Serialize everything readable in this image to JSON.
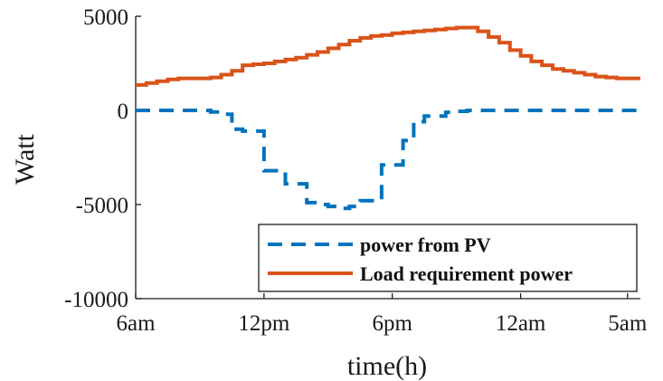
{
  "chart_data": {
    "type": "line",
    "title": "",
    "xlabel": "time(h)",
    "ylabel": "Watt",
    "ylim": [
      -10000,
      5000
    ],
    "xlim": [
      0,
      23.6
    ],
    "x_ticks": [
      {
        "value": 0,
        "label": "6am"
      },
      {
        "value": 6,
        "label": "12pm"
      },
      {
        "value": 12,
        "label": "6pm"
      },
      {
        "value": 18,
        "label": "12am"
      },
      {
        "value": 23,
        "label": "5am"
      }
    ],
    "y_ticks": [
      {
        "value": 5000,
        "label": "5000"
      },
      {
        "value": 0,
        "label": "0"
      },
      {
        "value": -5000,
        "label": "-5000"
      },
      {
        "value": -10000,
        "label": "-10000"
      }
    ],
    "grid": false,
    "legend_position": "bottom-right",
    "step": true,
    "series": [
      {
        "name": "power from PV",
        "color": "#0072BD",
        "dash": "dashed",
        "x": [
          -0.5,
          0,
          0.5,
          1,
          1.5,
          2,
          2.5,
          3,
          3.5,
          4,
          4.5,
          5,
          5.5,
          6,
          6.5,
          7,
          7.5,
          8,
          8.5,
          9,
          9.5,
          10,
          10.5,
          11,
          11.5,
          12,
          12.5,
          13,
          13.5,
          14,
          14.5,
          15,
          15.5,
          16,
          16.5,
          17,
          17.5,
          18,
          18.5,
          19,
          19.5,
          20,
          20.5,
          21,
          21.5,
          22,
          22.5,
          23,
          23.5
        ],
        "values": [
          0,
          0,
          0,
          0,
          0,
          0,
          0,
          0,
          -80,
          -200,
          -1000,
          -1100,
          -1100,
          -3200,
          -3200,
          -3900,
          -3900,
          -4900,
          -5000,
          -5100,
          -5200,
          -5100,
          -4800,
          -4800,
          -2900,
          -2900,
          -1600,
          -600,
          -300,
          -300,
          -100,
          -50,
          0,
          0,
          0,
          0,
          0,
          0,
          0,
          0,
          0,
          0,
          0,
          0,
          0,
          0,
          0,
          0,
          0
        ]
      },
      {
        "name": "Load requirement power",
        "color": "#D95319",
        "dash": "solid",
        "x": [
          -0.5,
          0,
          0.5,
          1,
          1.5,
          2,
          2.5,
          3,
          3.5,
          4,
          4.5,
          5,
          5.5,
          6,
          6.5,
          7,
          7.5,
          8,
          8.5,
          9,
          9.5,
          10,
          10.5,
          11,
          11.5,
          12,
          12.5,
          13,
          13.5,
          14,
          14.5,
          15,
          15.5,
          16,
          16.5,
          17,
          17.5,
          18,
          18.5,
          19,
          19.5,
          20,
          20.5,
          21,
          21.5,
          22,
          22.5,
          23,
          23.5
        ],
        "values": [
          1250,
          1350,
          1450,
          1550,
          1650,
          1700,
          1700,
          1700,
          1750,
          1900,
          2100,
          2400,
          2450,
          2500,
          2600,
          2700,
          2800,
          2950,
          3100,
          3300,
          3500,
          3700,
          3850,
          3950,
          4000,
          4100,
          4150,
          4200,
          4250,
          4300,
          4350,
          4400,
          4400,
          4200,
          3900,
          3600,
          3200,
          2900,
          2600,
          2400,
          2200,
          2100,
          2000,
          1900,
          1800,
          1750,
          1700,
          1700,
          1700
        ]
      }
    ]
  }
}
